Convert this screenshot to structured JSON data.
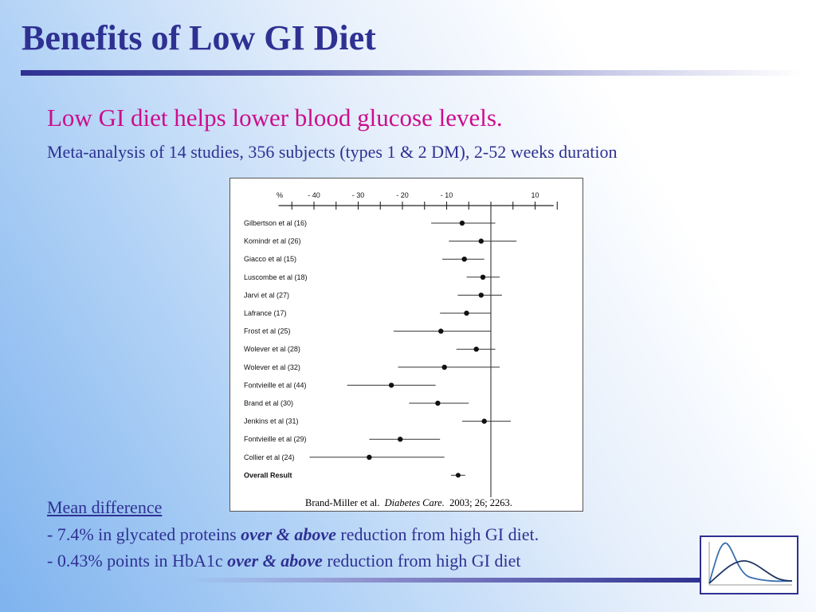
{
  "slide": {
    "title": "Benefits of Low GI Diet",
    "subtitle": "Low GI diet helps lower blood glucose levels.",
    "meta": "Meta-analysis of 14 studies, 356 subjects (types 1 & 2 DM), 2-52 weeks duration",
    "mean_heading": "Mean difference",
    "line1": {
      "pre": "- 7.4% in glycated proteins ",
      "emph": "over & above",
      "post": " reduction from high GI diet."
    },
    "line2": {
      "pre": "- 0.43% points in HbA1c ",
      "emph": "over & above",
      "post": " reduction from high GI diet"
    }
  },
  "citation": {
    "authors": "Brand-Miller et al.",
    "journal": "Diabetes Care.",
    "ref": "2003; 26; 2263."
  },
  "colors": {
    "title": "#2e3192",
    "subtitle": "#cc0d8c",
    "body": "#2e3192"
  },
  "chart_data": {
    "type": "scatter",
    "subtype": "forest-plot",
    "xaxis_unit_label": "%",
    "xlim": [
      -48,
      16
    ],
    "xticks": [
      -40,
      -30,
      -20,
      -10,
      10
    ],
    "xtick_labels": [
      "- 40",
      "- 30",
      "- 20",
      "- 10",
      "10"
    ],
    "reference_line": 0,
    "studies": [
      {
        "label": "Gilbertson et al (16)",
        "value": -6.5,
        "lower": -13.5,
        "upper": 1
      },
      {
        "label": "Komindr et al (26)",
        "value": -2.2,
        "lower": -9.5,
        "upper": 5.8
      },
      {
        "label": "Giacco et al (15)",
        "value": -6,
        "lower": -11,
        "upper": -1.5
      },
      {
        "label": "Luscombe et al (18)",
        "value": -1.8,
        "lower": -5.5,
        "upper": 2
      },
      {
        "label": "Jarvi et al (27)",
        "value": -2.2,
        "lower": -7.5,
        "upper": 2.5
      },
      {
        "label": "Lafrance (17)",
        "value": -5.5,
        "lower": -11.5,
        "upper": 0
      },
      {
        "label": "Frost et al (25)",
        "value": -11.3,
        "lower": -22,
        "upper": 0
      },
      {
        "label": "Wolever et al (28)",
        "value": -3.3,
        "lower": -7.8,
        "upper": 1
      },
      {
        "label": "Wolever et al (32)",
        "value": -10.5,
        "lower": -21,
        "upper": 2
      },
      {
        "label": "Fontvieille et al (44)",
        "value": -22.5,
        "lower": -32.5,
        "upper": -12.5
      },
      {
        "label": "Brand et al  (30)",
        "value": -12,
        "lower": -18.5,
        "upper": -5
      },
      {
        "label": "Jenkins et al  (31)",
        "value": -1.5,
        "lower": -6.5,
        "upper": 4.5
      },
      {
        "label": "Fontvieille et al  (29)",
        "value": -20.5,
        "lower": -27.5,
        "upper": -11.5
      },
      {
        "label": "Collier et al (24)",
        "value": -27.5,
        "lower": -41,
        "upper": -10.5
      }
    ],
    "overall": {
      "label": "Overall Result",
      "value": -7.4,
      "lower": -9,
      "upper": -5.8
    }
  }
}
